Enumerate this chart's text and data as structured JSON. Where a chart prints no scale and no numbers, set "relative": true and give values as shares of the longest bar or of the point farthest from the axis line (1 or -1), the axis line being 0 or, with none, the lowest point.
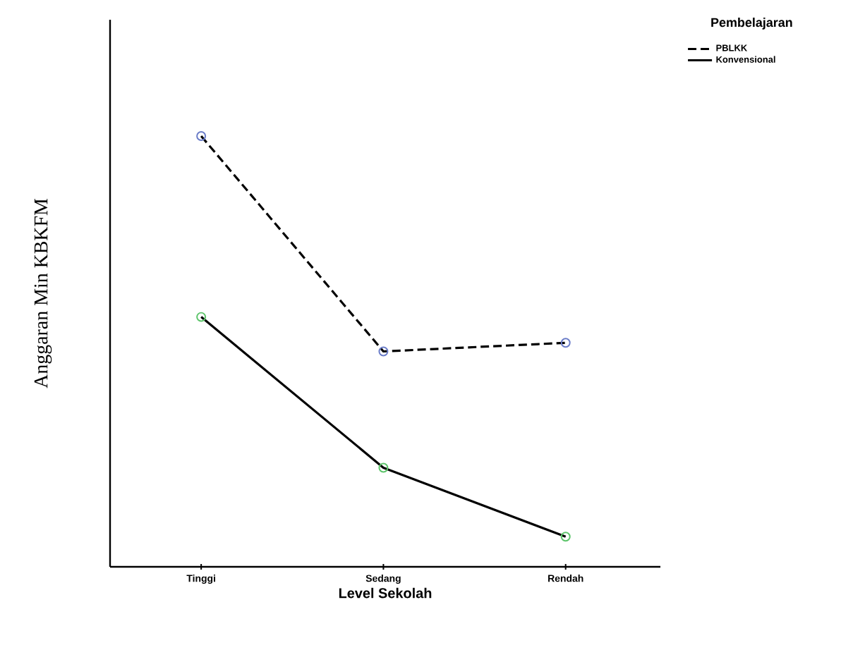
{
  "chart_data": {
    "type": "line",
    "relative": true,
    "xlabel": "Level Sekolah",
    "ylabel": "Anggaran Min KBKFM",
    "legend_title": "Pembelajaran",
    "legend": "top right",
    "marker": "circle",
    "grid": false,
    "categories": [
      "Tinggi",
      "Sedang",
      "Rendah"
    ],
    "series": [
      {
        "name": "PBLKK",
        "color": "#000000",
        "line_style": "dashed",
        "colors": [
          "#6a7cc8",
          "#6a7cc8",
          "#6a7cc8"
        ],
        "values": [
          1,
          0.5,
          0.52
        ]
      },
      {
        "name": "Konvensional",
        "color": "#000000",
        "line_style": "solid",
        "colors": [
          "#5cc46a",
          "#5cc46a",
          "#5cc46a"
        ],
        "values": [
          0.58,
          0.23,
          0.07
        ]
      }
    ]
  }
}
